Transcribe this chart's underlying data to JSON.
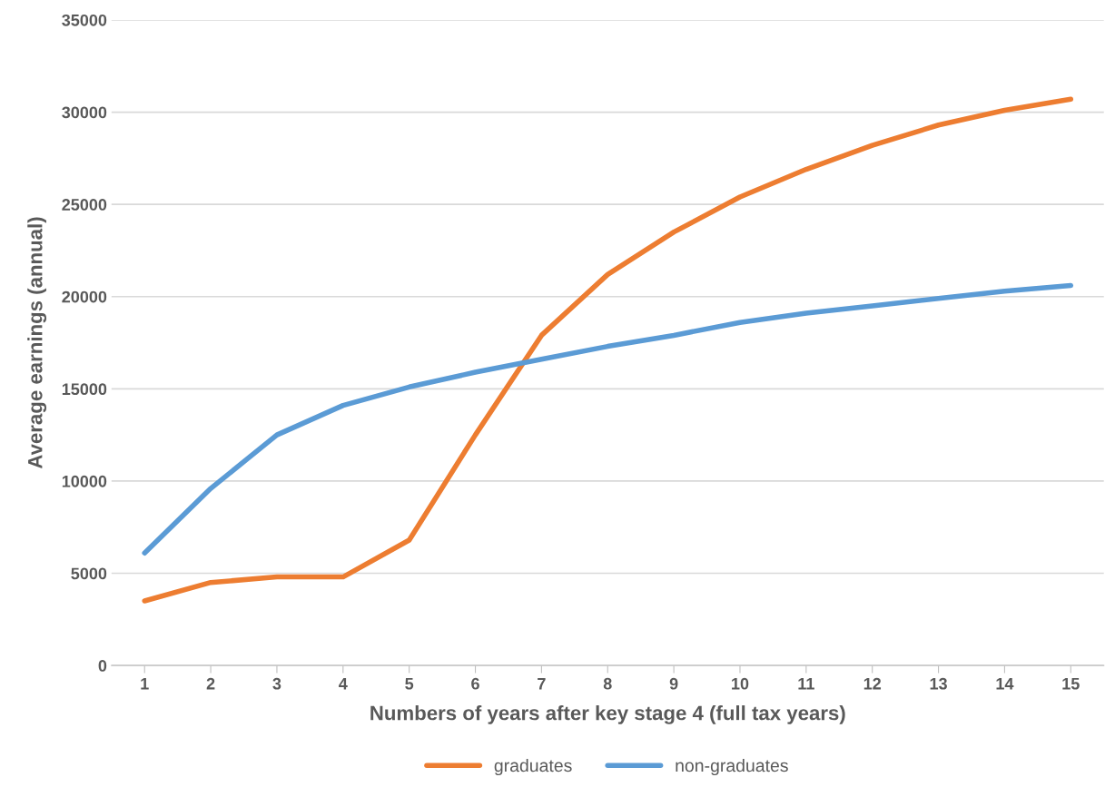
{
  "chart_data": {
    "type": "line",
    "xlabel": "Numbers of years after key stage 4 (full tax years)",
    "ylabel": "Average earnings (annual)",
    "categories": [
      "1",
      "2",
      "3",
      "4",
      "5",
      "6",
      "7",
      "8",
      "9",
      "10",
      "11",
      "12",
      "13",
      "14",
      "15"
    ],
    "series": [
      {
        "name": "graduates",
        "color": "#ed7d31",
        "values": [
          3500,
          4500,
          4800,
          4800,
          6800,
          12500,
          17900,
          21200,
          23500,
          25400,
          26900,
          28200,
          29300,
          30100,
          30700
        ]
      },
      {
        "name": "non-graduates",
        "color": "#5b9bd5",
        "values": [
          6100,
          9600,
          12500,
          14100,
          15100,
          15900,
          16600,
          17300,
          17900,
          18600,
          19100,
          19500,
          19900,
          20300,
          20600
        ]
      }
    ],
    "ylim": [
      0,
      35000
    ],
    "yticks": [
      0,
      5000,
      10000,
      15000,
      20000,
      25000,
      30000,
      35000
    ],
    "grid": "y",
    "legend": "bottom",
    "marker": "none",
    "line_style": "solid"
  }
}
